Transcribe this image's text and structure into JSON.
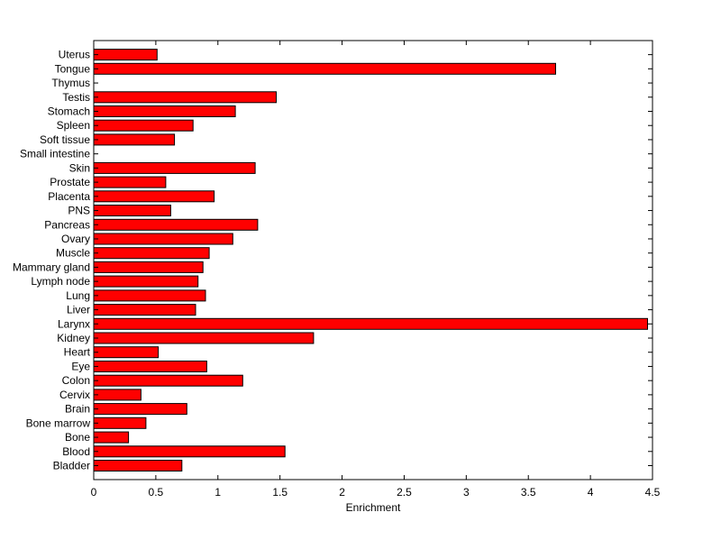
{
  "chart_data": {
    "type": "bar",
    "orientation": "horizontal",
    "title": "",
    "xlabel": "Enrichment",
    "ylabel": "",
    "xlim": [
      0,
      4.5
    ],
    "xticks": [
      "0",
      "0.5",
      "1",
      "1.5",
      "2",
      "2.5",
      "3",
      "3.5",
      "4",
      "4.5"
    ],
    "grid": false,
    "bar_color": "#ff0000",
    "categories": [
      "Bladder",
      "Blood",
      "Bone",
      "Bone marrow",
      "Brain",
      "Cervix",
      "Colon",
      "Eye",
      "Heart",
      "Kidney",
      "Larynx",
      "Liver",
      "Lung",
      "Lymph node",
      "Mammary gland",
      "Muscle",
      "Ovary",
      "Pancreas",
      "PNS",
      "Placenta",
      "Prostate",
      "Skin",
      "Small intestine",
      "Soft tissue",
      "Spleen",
      "Stomach",
      "Testis",
      "Thymus",
      "Tongue",
      "Uterus"
    ],
    "values": [
      0.71,
      1.54,
      0.28,
      0.42,
      0.75,
      0.38,
      1.2,
      0.91,
      0.52,
      1.77,
      4.46,
      0.82,
      0.9,
      0.84,
      0.88,
      0.93,
      1.12,
      1.32,
      0.62,
      0.97,
      0.58,
      1.3,
      0,
      0.65,
      0.8,
      1.14,
      1.47,
      0,
      3.72,
      0.51
    ]
  }
}
